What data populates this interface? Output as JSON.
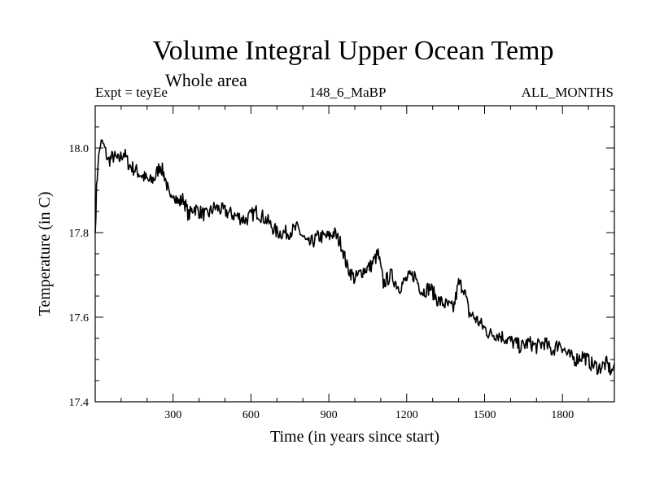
{
  "chart_data": {
    "type": "line",
    "title": "Volume Integral Upper Ocean Temp",
    "subtitle": "Whole area",
    "experiment": "Expt = teyEe",
    "run_label": "148_6_MaBP",
    "period_label": "ALL_MONTHS",
    "xlabel": "Time (in years since start)",
    "ylabel": "Temperature (in C)",
    "xlim": [
      0,
      2000
    ],
    "ylim": [
      17.4,
      18.1
    ],
    "xticks": [
      300,
      600,
      900,
      1200,
      1500,
      1800
    ],
    "xtick_labels": [
      "300",
      "600",
      "900",
      "1200",
      "1500",
      "1800"
    ],
    "yticks": [
      17.4,
      17.6,
      17.8,
      18.0
    ],
    "ytick_labels": [
      "17.4",
      "17.6",
      "17.8",
      "18.0"
    ],
    "series": [
      {
        "name": "Volume integral upper ocean temperature",
        "x": [
          0,
          5,
          10,
          20,
          30,
          40,
          50,
          70,
          90,
          110,
          130,
          150,
          170,
          190,
          210,
          230,
          250,
          270,
          290,
          300,
          320,
          340,
          360,
          380,
          400,
          430,
          460,
          500,
          540,
          580,
          620,
          660,
          700,
          740,
          780,
          820,
          860,
          900,
          920,
          950,
          970,
          1000,
          1030,
          1060,
          1090,
          1110,
          1140,
          1170,
          1200,
          1230,
          1260,
          1290,
          1320,
          1350,
          1380,
          1400,
          1420,
          1440,
          1460,
          1490,
          1520,
          1550,
          1580,
          1610,
          1640,
          1670,
          1700,
          1730,
          1760,
          1790,
          1820,
          1850,
          1880,
          1910,
          1940,
          1970,
          1990,
          2000
        ],
        "y": [
          17.8,
          17.9,
          17.96,
          18.01,
          18.01,
          17.99,
          17.97,
          17.98,
          17.97,
          17.99,
          17.96,
          17.95,
          17.94,
          17.93,
          17.92,
          17.93,
          17.96,
          17.93,
          17.87,
          17.9,
          17.87,
          17.88,
          17.84,
          17.86,
          17.85,
          17.84,
          17.86,
          17.85,
          17.84,
          17.83,
          17.85,
          17.83,
          17.8,
          17.8,
          17.81,
          17.77,
          17.79,
          17.79,
          17.8,
          17.77,
          17.72,
          17.69,
          17.71,
          17.72,
          17.75,
          17.68,
          17.7,
          17.67,
          17.69,
          17.7,
          17.66,
          17.67,
          17.64,
          17.63,
          17.62,
          17.68,
          17.67,
          17.61,
          17.6,
          17.58,
          17.56,
          17.56,
          17.55,
          17.54,
          17.53,
          17.54,
          17.53,
          17.54,
          17.52,
          17.54,
          17.51,
          17.5,
          17.51,
          17.49,
          17.48,
          17.49,
          17.47,
          17.49
        ]
      }
    ]
  }
}
